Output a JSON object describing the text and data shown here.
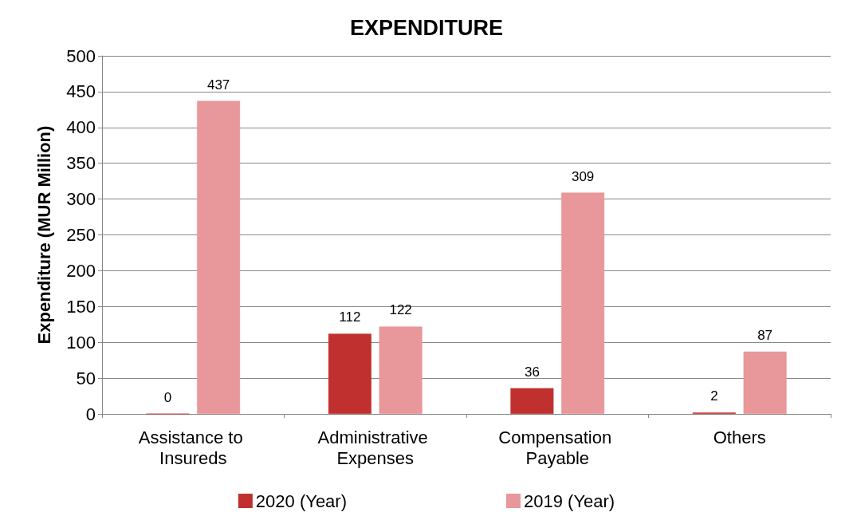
{
  "chart_data": {
    "type": "bar",
    "title": "EXPENDITURE",
    "ylabel": "Expenditure (MUR Million)",
    "categories": [
      "Assistance to Insureds",
      "Administrative Expenses",
      "Compensation Payable",
      "Others"
    ],
    "series": [
      {
        "name": "2020 (Year)",
        "color": "#c0302e",
        "values": [
          0,
          112,
          36,
          2
        ]
      },
      {
        "name": "2019 (Year)",
        "color": "#e8979a",
        "values": [
          437,
          122,
          309,
          87
        ]
      }
    ],
    "ylim": [
      0,
      500
    ],
    "yticks": [
      0,
      50,
      100,
      150,
      200,
      250,
      300,
      350,
      400,
      450,
      500
    ],
    "grid": "y",
    "legend": "bottom",
    "data_labels": true
  }
}
